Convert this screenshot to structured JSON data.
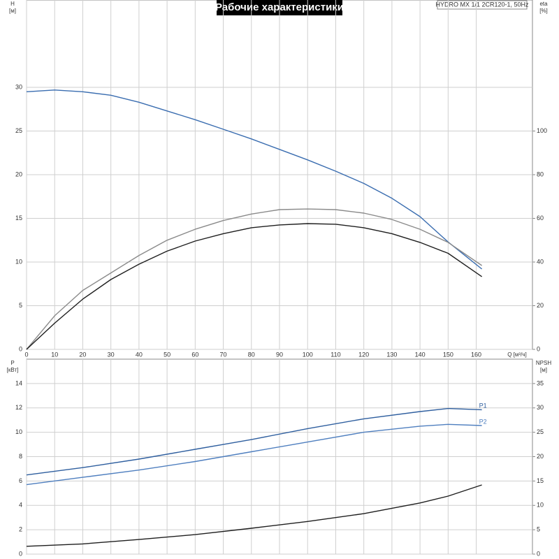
{
  "title": "Рабочие характеристики",
  "model": "HYDRO MX 1/1 2CR120-1, 50Hz",
  "chart_data": [
    {
      "type": "line",
      "xlabel": "Q [м³/ч]",
      "ylabel": [
        "H",
        "[м]"
      ],
      "y2label": [
        "eta",
        "[%]"
      ],
      "x": [
        0,
        10,
        20,
        30,
        40,
        50,
        60,
        70,
        80,
        90,
        100,
        110,
        120,
        130,
        140,
        150,
        162
      ],
      "xlim": [
        0,
        180
      ],
      "xticks": [
        0,
        10,
        20,
        30,
        40,
        50,
        60,
        70,
        80,
        90,
        100,
        110,
        120,
        130,
        140,
        150,
        160
      ],
      "ylim": [
        0,
        40
      ],
      "yticks": [
        0,
        5,
        10,
        15,
        20,
        25,
        30
      ],
      "y2lim": [
        0,
        160
      ],
      "y2ticks": [
        0,
        20,
        40,
        60,
        80,
        100
      ],
      "grid": true,
      "series": [
        {
          "color": "#3a6db0",
          "values": [
            29.5,
            29.7,
            29.5,
            29.1,
            28.3,
            27.3,
            26.3,
            25.2,
            24.1,
            22.9,
            21.7,
            20.4,
            19,
            17.3,
            15.2,
            12.3,
            9.2
          ]
        },
        {
          "color": "#8a8a8a",
          "axis": "y2",
          "values": [
            0,
            15.4,
            27,
            35,
            43,
            50,
            55,
            59,
            62,
            64,
            64.3,
            64,
            62.4,
            59.5,
            55,
            49,
            38.4
          ]
        },
        {
          "color": "#1e1e1e",
          "axis": "y2",
          "values": [
            0,
            12,
            23,
            32,
            39,
            45,
            49.6,
            53,
            55.7,
            57,
            57.6,
            57.3,
            55.7,
            53,
            49,
            44,
            33.3
          ]
        }
      ]
    },
    {
      "type": "line",
      "ylabel": [
        "P",
        "[кВт]"
      ],
      "y2label": [
        "NPSH",
        "[м]"
      ],
      "x": [
        0,
        20,
        40,
        60,
        80,
        100,
        120,
        140,
        150,
        162
      ],
      "xlim": [
        0,
        180
      ],
      "ylim": [
        0,
        16
      ],
      "yticks": [
        0,
        2,
        4,
        6,
        8,
        10,
        12,
        14
      ],
      "y2lim": [
        0,
        40
      ],
      "y2ticks": [
        0,
        5,
        10,
        15,
        20,
        25,
        30,
        35
      ],
      "grid": true,
      "series": [
        {
          "name": "P1",
          "color": "#2f5f9f",
          "values": [
            6.5,
            7.1,
            7.8,
            8.6,
            9.4,
            10.3,
            11.1,
            11.7,
            11.95,
            11.85
          ]
        },
        {
          "name": "P2",
          "color": "#4f7fbf",
          "values": [
            5.7,
            6.3,
            6.9,
            7.6,
            8.4,
            9.2,
            10,
            10.5,
            10.65,
            10.55
          ]
        },
        {
          "color": "#1e1e1e",
          "axis": "y2",
          "values": [
            1.6,
            2.1,
            3,
            4,
            5.3,
            6.7,
            8.3,
            10.5,
            11.9,
            14.2
          ]
        }
      ]
    }
  ]
}
